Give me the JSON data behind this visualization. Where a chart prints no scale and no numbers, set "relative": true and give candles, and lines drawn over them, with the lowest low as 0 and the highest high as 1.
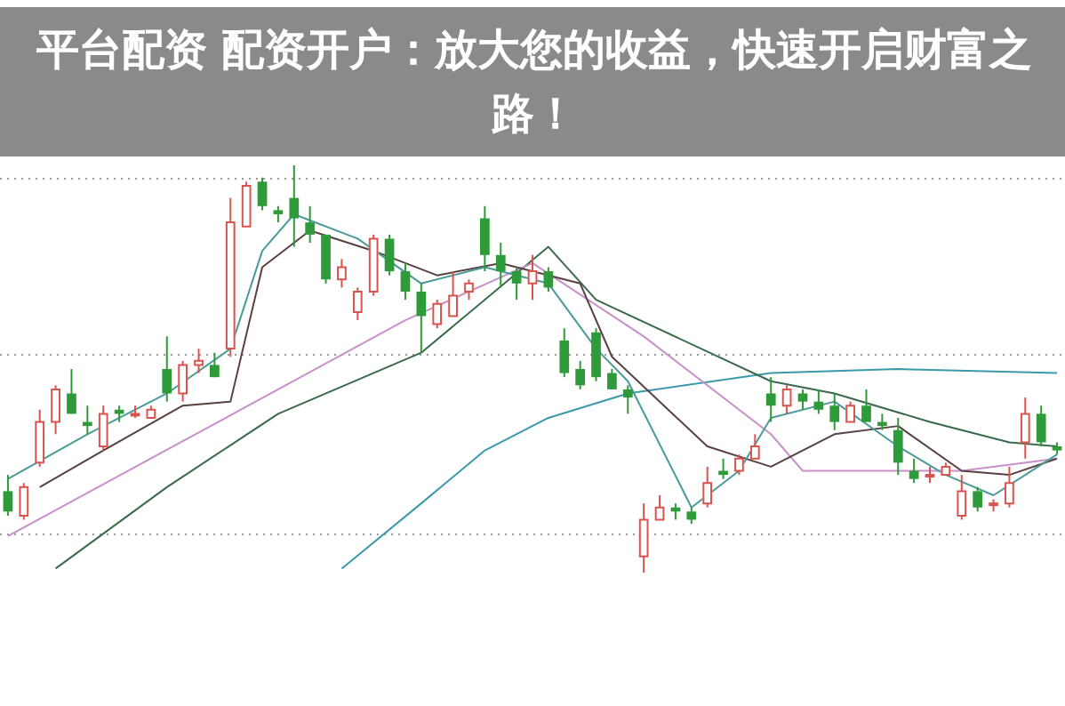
{
  "chart_data": {
    "type": "candlestick",
    "title": "平台配资 配资开户：放大您的收益，快速开启财富之路！",
    "relative": true,
    "grid": true,
    "categories": [
      null,
      null,
      null,
      null,
      null,
      null,
      null,
      null,
      null,
      null,
      null,
      null,
      null,
      null,
      null,
      null,
      null,
      null,
      null,
      null,
      null,
      null,
      null,
      null,
      null,
      null,
      null,
      null,
      null,
      null,
      null,
      null,
      null,
      null,
      null,
      null,
      null,
      null,
      null,
      null,
      null,
      null,
      null,
      null,
      null,
      null,
      null,
      null,
      null,
      null,
      null,
      null,
      null,
      null,
      null,
      null,
      null,
      null,
      null,
      null,
      null,
      null,
      null,
      null,
      null,
      null,
      null
    ],
    "ohlc": [
      [
        0.2,
        0.24,
        0.14,
        0.15
      ],
      [
        0.14,
        0.22,
        0.13,
        0.21
      ],
      [
        0.27,
        0.4,
        0.26,
        0.37
      ],
      [
        0.37,
        0.46,
        0.34,
        0.45
      ],
      [
        0.44,
        0.5,
        0.39,
        0.39
      ],
      [
        0.37,
        0.41,
        0.34,
        0.36
      ],
      [
        0.31,
        0.41,
        0.3,
        0.39
      ],
      [
        0.4,
        0.41,
        0.37,
        0.39
      ],
      [
        0.39,
        0.41,
        0.38,
        0.39
      ],
      [
        0.38,
        0.41,
        0.38,
        0.4
      ],
      [
        0.5,
        0.58,
        0.42,
        0.44
      ],
      [
        0.44,
        0.52,
        0.42,
        0.51
      ],
      [
        0.51,
        0.55,
        0.49,
        0.52
      ],
      [
        0.51,
        0.54,
        0.48,
        0.48
      ],
      [
        0.55,
        0.92,
        0.53,
        0.86
      ],
      [
        0.85,
        0.96,
        0.85,
        0.95
      ],
      [
        0.96,
        0.97,
        0.89,
        0.9
      ],
      [
        0.89,
        0.9,
        0.86,
        0.88
      ],
      [
        0.92,
        1,
        0.8,
        0.87
      ],
      [
        0.86,
        0.9,
        0.81,
        0.83
      ],
      [
        0.83,
        0.83,
        0.71,
        0.72
      ],
      [
        0.72,
        0.77,
        0.7,
        0.75
      ],
      [
        0.64,
        0.7,
        0.62,
        0.69
      ],
      [
        0.69,
        0.83,
        0.68,
        0.82
      ],
      [
        0.82,
        0.83,
        0.73,
        0.74
      ],
      [
        0.74,
        0.76,
        0.67,
        0.69
      ],
      [
        0.69,
        0.71,
        0.54,
        0.63
      ],
      [
        0.61,
        0.67,
        0.6,
        0.66
      ],
      [
        0.63,
        0.74,
        0.63,
        0.68
      ],
      [
        0.69,
        0.72,
        0.67,
        0.71
      ],
      [
        0.87,
        0.9,
        0.74,
        0.78
      ],
      [
        0.78,
        0.81,
        0.7,
        0.74
      ],
      [
        0.74,
        0.75,
        0.67,
        0.71
      ],
      [
        0.71,
        0.78,
        0.67,
        0.74
      ],
      [
        0.74,
        0.75,
        0.69,
        0.7
      ],
      [
        0.57,
        0.6,
        0.48,
        0.49
      ],
      [
        0.5,
        0.52,
        0.45,
        0.46
      ],
      [
        0.59,
        0.6,
        0.47,
        0.48
      ],
      [
        0.49,
        0.5,
        0.45,
        0.45
      ],
      [
        0.45,
        0.46,
        0.39,
        0.43
      ],
      [
        0.04,
        0.17,
        0,
        0.13
      ],
      [
        0.13,
        0.19,
        0.13,
        0.16
      ],
      [
        0.16,
        0.17,
        0.13,
        0.15
      ],
      [
        0.15,
        0.16,
        0.12,
        0.13
      ],
      [
        0.17,
        0.26,
        0.16,
        0.22
      ],
      [
        0.25,
        0.28,
        0.23,
        0.24
      ],
      [
        0.25,
        0.29,
        0.24,
        0.28
      ],
      [
        0.28,
        0.34,
        0.28,
        0.31
      ],
      [
        0.44,
        0.48,
        0.37,
        0.41
      ],
      [
        0.41,
        0.46,
        0.39,
        0.45
      ],
      [
        0.44,
        0.45,
        0.4,
        0.42
      ],
      [
        0.42,
        0.45,
        0.39,
        0.4
      ],
      [
        0.41,
        0.44,
        0.35,
        0.37
      ],
      [
        0.37,
        0.42,
        0.37,
        0.41
      ],
      [
        0.41,
        0.45,
        0.37,
        0.37
      ],
      [
        0.37,
        0.39,
        0.35,
        0.36
      ],
      [
        0.35,
        0.38,
        0.24,
        0.27
      ],
      [
        0.25,
        0.28,
        0.22,
        0.23
      ],
      [
        0.24,
        0.26,
        0.22,
        0.24
      ],
      [
        0.24,
        0.27,
        0.24,
        0.26
      ],
      [
        0.14,
        0.24,
        0.13,
        0.2
      ],
      [
        0.2,
        0.21,
        0.15,
        0.16
      ],
      [
        0.17,
        0.18,
        0.15,
        0.17
      ],
      [
        0.17,
        0.26,
        0.16,
        0.22
      ],
      [
        0.32,
        0.43,
        0.28,
        0.39
      ],
      [
        0.39,
        0.41,
        0.31,
        0.32
      ],
      [
        0.31,
        0.32,
        0.29,
        0.3
      ]
    ],
    "series": [
      {
        "type": "line",
        "color": "#4a9a9a",
        "values": [
          0.23,
          null,
          null,
          null,
          null,
          0.34,
          null,
          null,
          null,
          null,
          0.44,
          null,
          null,
          null,
          0.55,
          null,
          0.79,
          null,
          0.88,
          null,
          null,
          null,
          0.82,
          null,
          null,
          null,
          0.71,
          null,
          null,
          null,
          0.75,
          null,
          null,
          null,
          0.71,
          null,
          null,
          0.55,
          null,
          0.47,
          null,
          null,
          null,
          0.16,
          null,
          null,
          0.25,
          null,
          0.38,
          null,
          null,
          null,
          0.42,
          null,
          null,
          null,
          0.31,
          null,
          null,
          0.24,
          null,
          null,
          0.19,
          null,
          0.24,
          null,
          0.29
        ]
      },
      {
        "type": "line",
        "color": "#5a4040",
        "values": [
          null,
          null,
          0.21,
          null,
          null,
          null,
          0.3,
          null,
          null,
          null,
          null,
          0.41,
          null,
          null,
          0.42,
          null,
          0.75,
          null,
          null,
          0.84,
          null,
          null,
          null,
          0.79,
          null,
          null,
          null,
          0.73,
          null,
          null,
          null,
          0.76,
          null,
          null,
          null,
          null,
          0.71,
          null,
          0.53,
          null,
          null,
          null,
          null,
          null,
          0.31,
          null,
          null,
          null,
          0.26,
          null,
          null,
          null,
          0.34,
          null,
          null,
          null,
          0.36,
          null,
          null,
          null,
          0.25,
          null,
          null,
          0.24,
          null,
          null,
          0.28
        ]
      },
      {
        "type": "line",
        "color": "#c890c8",
        "values": [
          0.09,
          null,
          null,
          null,
          null,
          null,
          null,
          null,
          null,
          null,
          null,
          null,
          null,
          null,
          null,
          null,
          null,
          0.45,
          null,
          null,
          null,
          null,
          null,
          null,
          null,
          0.62,
          null,
          null,
          null,
          null,
          null,
          null,
          null,
          0.76,
          null,
          null,
          null,
          null,
          null,
          null,
          0.58,
          null,
          null,
          null,
          null,
          null,
          null,
          null,
          0.34,
          null,
          0.25,
          null,
          null,
          null,
          null,
          null,
          null,
          null,
          null,
          null,
          0.25,
          null,
          null,
          null,
          null,
          null,
          0.28
        ]
      },
      {
        "type": "line",
        "color": "#3a6a4a",
        "values": [
          null,
          null,
          null,
          0.01,
          null,
          null,
          null,
          null,
          null,
          null,
          0.21,
          null,
          null,
          null,
          null,
          null,
          null,
          0.39,
          null,
          null,
          null,
          null,
          null,
          null,
          null,
          null,
          0.54,
          null,
          null,
          null,
          null,
          null,
          null,
          null,
          0.8,
          null,
          null,
          0.67,
          null,
          null,
          null,
          null,
          null,
          null,
          null,
          null,
          null,
          null,
          0.47,
          null,
          null,
          null,
          0.44,
          null,
          null,
          null,
          null,
          null,
          0.37,
          null,
          null,
          null,
          null,
          0.32,
          null,
          null,
          0.31
        ]
      },
      {
        "type": "line",
        "color": "#3a9aaa",
        "values": [
          null,
          null,
          null,
          null,
          null,
          null,
          null,
          null,
          null,
          null,
          null,
          null,
          null,
          null,
          null,
          null,
          null,
          null,
          null,
          null,
          null,
          0.01,
          null,
          null,
          null,
          null,
          0.17,
          null,
          null,
          null,
          0.3,
          null,
          null,
          null,
          0.38,
          null,
          null,
          null,
          null,
          0.44,
          null,
          null,
          null,
          null,
          null,
          null,
          null,
          null,
          0.49,
          null,
          null,
          null,
          null,
          null,
          null,
          null,
          0.5,
          null,
          null,
          null,
          null,
          null,
          null,
          null,
          null,
          null,
          0.49
        ]
      }
    ]
  }
}
